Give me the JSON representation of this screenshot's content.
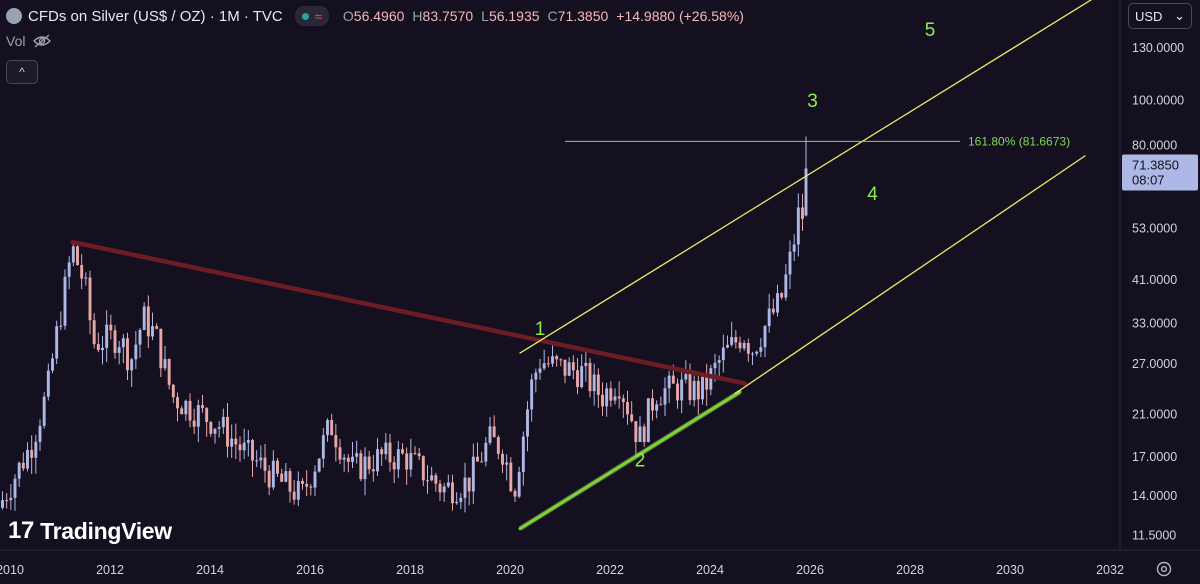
{
  "header": {
    "title": "CFDs on Silver (US$ / OZ) · 1M · TVC",
    "approx_glyph": "≈",
    "ohlc": [
      {
        "label": "O",
        "value": "56.4960"
      },
      {
        "label": "H",
        "value": "83.7570"
      },
      {
        "label": "L",
        "value": "56.1935"
      },
      {
        "label": "C",
        "value": "71.3850"
      }
    ],
    "change": "+14.9880 (+26.58%)",
    "vol_label": "Vol"
  },
  "collapse_glyph": "^",
  "currency": {
    "label": "USD",
    "chevron": "⌄"
  },
  "logo": {
    "mark": "17",
    "text": "TradingView"
  },
  "colors": {
    "background": "#14101f",
    "up": "#aeb8e6",
    "down": "#e8a7a7",
    "channel": "#e8e86a",
    "resistance": "#6e1c24",
    "support": "#7ad62a",
    "fib": "#7ed957",
    "wave_label": "#8cf04a",
    "price_tag": "#aeb8e6"
  },
  "chart_data": {
    "type": "candlestick",
    "x_range": [
      2009.8,
      2032.2
    ],
    "y_scale": "log",
    "y_range": [
      10.7,
      165
    ],
    "x_ticks": [
      "2010",
      "2012",
      "2014",
      "2016",
      "2018",
      "2020",
      "2022",
      "2024",
      "2026",
      "2028",
      "2030",
      "2032"
    ],
    "y_ticks": [
      "130.0000",
      "100.0000",
      "80.0000",
      "53.0000",
      "41.0000",
      "33.0000",
      "27.0000",
      "21.0000",
      "17.0000",
      "14.0000",
      "11.5000"
    ],
    "last_price": "71.3850",
    "countdown": "08:07",
    "anchors": [
      {
        "t": 2009.85,
        "p": 13.2
      },
      {
        "t": 2010.5,
        "p": 18.0
      },
      {
        "t": 2010.83,
        "p": 23.5
      },
      {
        "t": 2011.0,
        "p": 30.5
      },
      {
        "t": 2011.33,
        "p": 48.0
      },
      {
        "t": 2011.58,
        "p": 40.0
      },
      {
        "t": 2011.75,
        "p": 30.0
      },
      {
        "t": 2012.25,
        "p": 31.0
      },
      {
        "t": 2012.5,
        "p": 27.5
      },
      {
        "t": 2012.75,
        "p": 34.0
      },
      {
        "t": 2013.0,
        "p": 31.0
      },
      {
        "t": 2013.33,
        "p": 23.0
      },
      {
        "t": 2013.75,
        "p": 21.5
      },
      {
        "t": 2014.25,
        "p": 20.0
      },
      {
        "t": 2014.75,
        "p": 17.5
      },
      {
        "t": 2015.5,
        "p": 15.0
      },
      {
        "t": 2015.92,
        "p": 14.0
      },
      {
        "t": 2016.5,
        "p": 20.0
      },
      {
        "t": 2016.92,
        "p": 16.0
      },
      {
        "t": 2017.5,
        "p": 17.0
      },
      {
        "t": 2018.0,
        "p": 17.0
      },
      {
        "t": 2018.75,
        "p": 14.5
      },
      {
        "t": 2019.25,
        "p": 15.0
      },
      {
        "t": 2019.67,
        "p": 18.5
      },
      {
        "t": 2019.92,
        "p": 17.8
      },
      {
        "t": 2020.17,
        "p": 14.5
      },
      {
        "t": 2020.5,
        "p": 24.0
      },
      {
        "t": 2020.67,
        "p": 27.5
      },
      {
        "t": 2021.08,
        "p": 26.5
      },
      {
        "t": 2021.5,
        "p": 26.0
      },
      {
        "t": 2021.92,
        "p": 23.0
      },
      {
        "t": 2022.25,
        "p": 25.0
      },
      {
        "t": 2022.67,
        "p": 18.5
      },
      {
        "t": 2023.0,
        "p": 23.5
      },
      {
        "t": 2023.5,
        "p": 24.0
      },
      {
        "t": 2023.92,
        "p": 23.5
      },
      {
        "t": 2024.33,
        "p": 28.0
      },
      {
        "t": 2024.75,
        "p": 31.5
      },
      {
        "t": 2024.92,
        "p": 29.0
      },
      {
        "t": 2025.25,
        "p": 33.5
      },
      {
        "t": 2025.5,
        "p": 37.0
      },
      {
        "t": 2025.75,
        "p": 48.5
      },
      {
        "t": 2025.83,
        "p": 56.5
      }
    ],
    "last_candle": {
      "t": 2025.92,
      "open": 56.496,
      "high": 83.757,
      "low": 56.1935,
      "close": 71.385
    },
    "lines": [
      {
        "kind": "resistance",
        "from": {
          "t": 2011.25,
          "p": 49.5
        },
        "to": {
          "t": 2024.7,
          "p": 24.5
        }
      },
      {
        "kind": "support",
        "from": {
          "t": 2020.2,
          "p": 11.9
        },
        "to": {
          "t": 2024.6,
          "p": 23.5
        }
      },
      {
        "kind": "channel-upper",
        "from": {
          "t": 2020.2,
          "p": 28.5
        },
        "to": {
          "t": 2032.0,
          "p": 175
        }
      },
      {
        "kind": "channel-lower",
        "from": {
          "t": 2024.5,
          "p": 23.3
        },
        "to": {
          "t": 2031.5,
          "p": 76
        }
      }
    ],
    "fib_level": {
      "t_start": 2021.1,
      "t_end": 2029.0,
      "price": 81.6673,
      "label": "161.80% (81.6673)"
    },
    "wave_labels": [
      {
        "text": "1",
        "t": 2020.6,
        "p": 31.2
      },
      {
        "text": "2",
        "t": 2022.6,
        "p": 16.2
      },
      {
        "text": "3",
        "t": 2026.05,
        "p": 97.0
      },
      {
        "text": "4",
        "t": 2027.25,
        "p": 61.0
      },
      {
        "text": "5",
        "t": 2028.4,
        "p": 138.0
      }
    ]
  }
}
